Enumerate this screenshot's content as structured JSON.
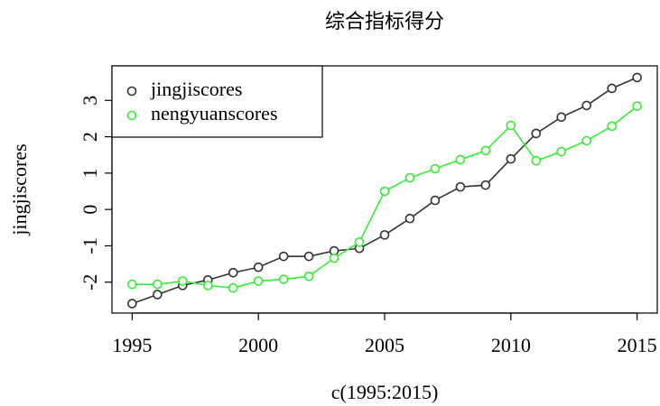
{
  "chart_data": {
    "type": "line",
    "title": "综合指标得分",
    "x_label": "c(1995:2015)",
    "y_label": "jingjiscores",
    "x": [
      1995,
      1996,
      1997,
      1998,
      1999,
      2000,
      2001,
      2002,
      2003,
      2004,
      2005,
      2006,
      2007,
      2008,
      2009,
      2010,
      2011,
      2012,
      2013,
      2014,
      2015
    ],
    "series": [
      {
        "name": "jingjiscores",
        "color": "#333333",
        "values": [
          -2.59,
          -2.34,
          -2.09,
          -1.94,
          -1.74,
          -1.59,
          -1.29,
          -1.29,
          -1.14,
          -1.07,
          -0.7,
          -0.25,
          0.25,
          0.62,
          0.67,
          1.39,
          2.09,
          2.54,
          2.86,
          3.33,
          3.63
        ]
      },
      {
        "name": "nengyuanscores",
        "color": "#33ee33",
        "values": [
          -2.06,
          -2.06,
          -1.97,
          -2.09,
          -2.16,
          -1.97,
          -1.92,
          -1.84,
          -1.34,
          -0.9,
          0.5,
          0.87,
          1.12,
          1.37,
          1.62,
          2.31,
          1.34,
          1.59,
          1.89,
          2.29,
          2.84
        ]
      }
    ],
    "xlim": [
      1994.2,
      2015.8
    ],
    "ylim": [
      -2.85,
      3.95
    ],
    "xticks": [
      1995,
      2000,
      2005,
      2010,
      2015
    ],
    "yticks": [
      -2,
      -1,
      0,
      1,
      2,
      3
    ],
    "legend": "top-left"
  }
}
